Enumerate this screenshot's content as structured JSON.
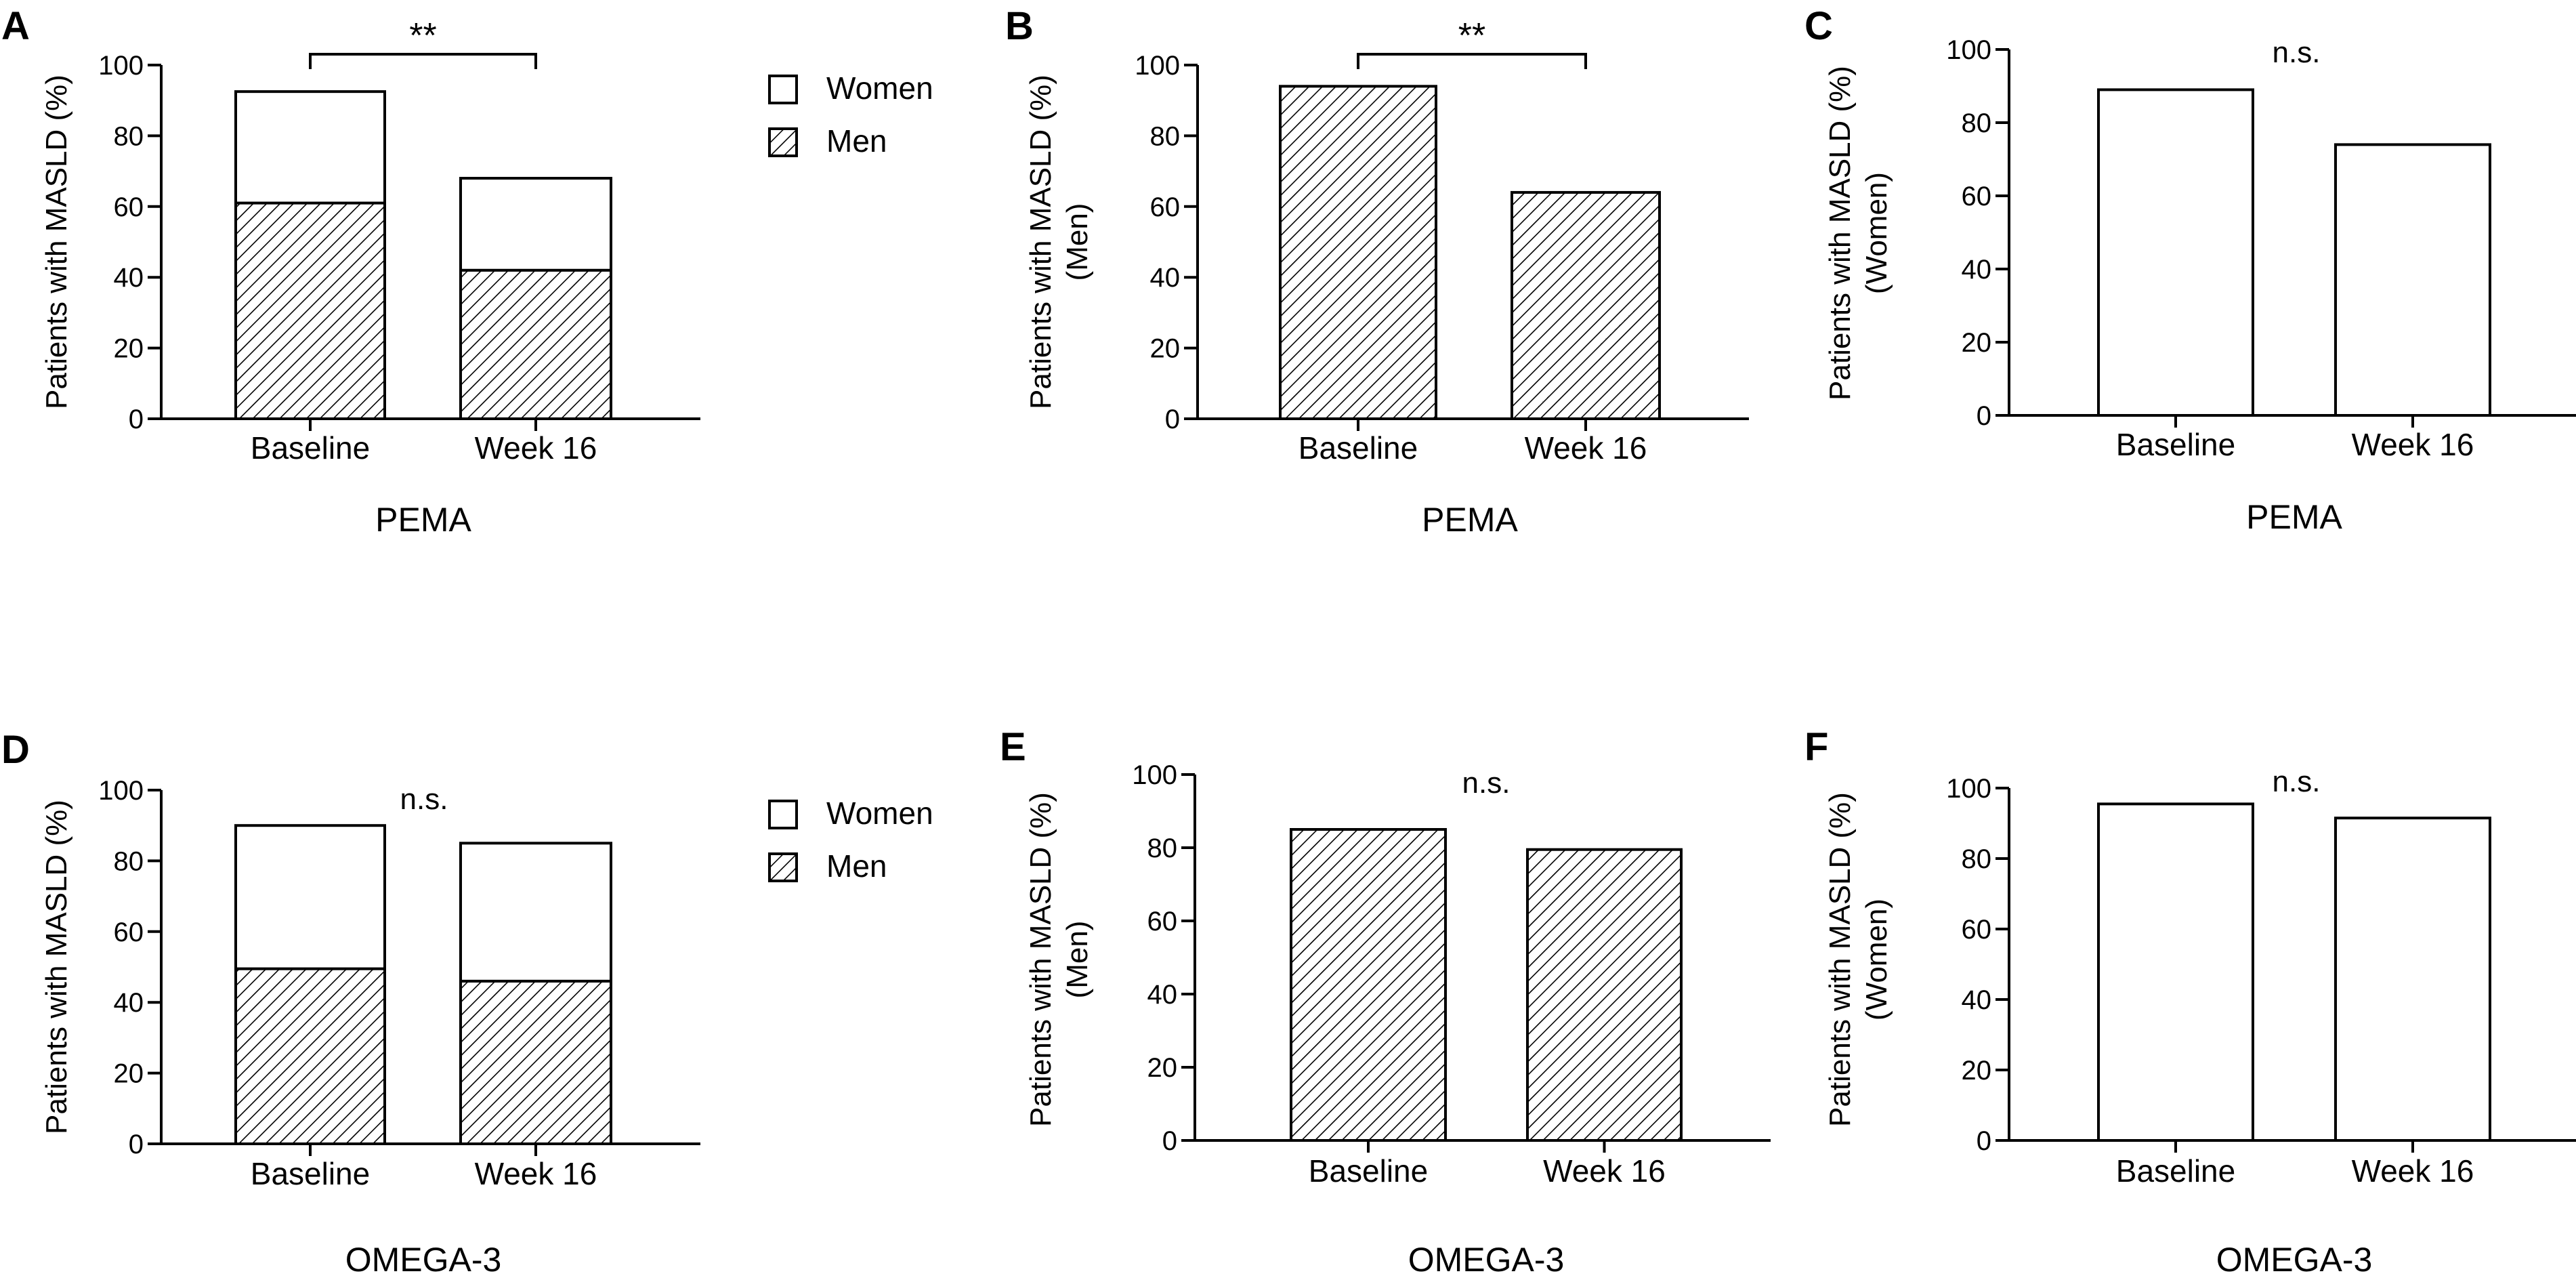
{
  "figure": {
    "legend_labels": [
      "Women",
      "Men"
    ],
    "panels": [
      {
        "letter": "A",
        "group_label": "PEMA",
        "ylabel_lines": [
          "Patients with MASLD (%)"
        ],
        "significance": "**",
        "significance_style": "bracket"
      },
      {
        "letter": "B",
        "group_label": "PEMA",
        "ylabel_lines": [
          "Patients with MASLD (%)",
          "(Men)"
        ],
        "significance": "**",
        "significance_style": "bracket"
      },
      {
        "letter": "C",
        "group_label": "PEMA",
        "ylabel_lines": [
          "Patients with MASLD (%)",
          "(Women)"
        ],
        "significance": "n.s.",
        "significance_style": "text"
      },
      {
        "letter": "D",
        "group_label": "OMEGA-3",
        "ylabel_lines": [
          "Patients with MASLD (%)"
        ],
        "significance": "n.s.",
        "significance_style": "text"
      },
      {
        "letter": "E",
        "group_label": "OMEGA-3",
        "ylabel_lines": [
          "Patients with MASLD (%)",
          "(Men)"
        ],
        "significance": "n.s.",
        "significance_style": "text"
      },
      {
        "letter": "F",
        "group_label": "OMEGA-3",
        "ylabel_lines": [
          "Patients with MASLD (%)",
          "(Women)"
        ],
        "significance": "n.s.",
        "significance_style": "text"
      }
    ]
  },
  "chart_data": [
    {
      "type": "bar",
      "stacked": true,
      "title": "",
      "xlabel": "PEMA",
      "ylabel": "Patients with MASLD (%)",
      "ylim": [
        0,
        100
      ],
      "yticks": [
        0,
        20,
        40,
        60,
        80,
        100
      ],
      "categories": [
        "Baseline",
        "Week 16"
      ],
      "series": [
        {
          "name": "Men",
          "pattern": "hatched",
          "values": [
            61,
            42
          ]
        },
        {
          "name": "Women",
          "pattern": "white",
          "values": [
            31.5,
            26
          ]
        }
      ],
      "legend": [
        "Women",
        "Men"
      ],
      "legend_position": "right",
      "annotation": "**"
    },
    {
      "type": "bar",
      "title": "",
      "xlabel": "PEMA",
      "ylabel": "Patients with MASLD (%) (Men)",
      "ylim": [
        0,
        100
      ],
      "yticks": [
        0,
        20,
        40,
        60,
        80,
        100
      ],
      "categories": [
        "Baseline",
        "Week 16"
      ],
      "series": [
        {
          "name": "Men",
          "pattern": "hatched",
          "values": [
            94,
            64
          ]
        }
      ],
      "annotation": "**"
    },
    {
      "type": "bar",
      "title": "",
      "xlabel": "PEMA",
      "ylabel": "Patients with MASLD (%) (Women)",
      "ylim": [
        0,
        100
      ],
      "yticks": [
        0,
        20,
        40,
        60,
        80,
        100
      ],
      "categories": [
        "Baseline",
        "Week 16"
      ],
      "series": [
        {
          "name": "Women",
          "pattern": "white",
          "values": [
            89,
            74
          ]
        }
      ],
      "annotation": "n.s."
    },
    {
      "type": "bar",
      "stacked": true,
      "title": "",
      "xlabel": "OMEGA-3",
      "ylabel": "Patients with MASLD (%)",
      "ylim": [
        0,
        100
      ],
      "yticks": [
        0,
        20,
        40,
        60,
        80,
        100
      ],
      "categories": [
        "Baseline",
        "Week 16"
      ],
      "series": [
        {
          "name": "Men",
          "pattern": "hatched",
          "values": [
            49.5,
            46
          ]
        },
        {
          "name": "Women",
          "pattern": "white",
          "values": [
            40.5,
            39
          ]
        }
      ],
      "legend": [
        "Women",
        "Men"
      ],
      "legend_position": "right",
      "annotation": "n.s."
    },
    {
      "type": "bar",
      "title": "",
      "xlabel": "OMEGA-3",
      "ylabel": "Patients with MASLD (%) (Men)",
      "ylim": [
        0,
        100
      ],
      "yticks": [
        0,
        20,
        40,
        60,
        80,
        100
      ],
      "categories": [
        "Baseline",
        "Week 16"
      ],
      "series": [
        {
          "name": "Men",
          "pattern": "hatched",
          "values": [
            85,
            79.5
          ]
        }
      ],
      "annotation": "n.s."
    },
    {
      "type": "bar",
      "title": "",
      "xlabel": "OMEGA-3",
      "ylabel": "Patients with MASLD (%) (Women)",
      "ylim": [
        0,
        100
      ],
      "yticks": [
        0,
        20,
        40,
        60,
        80,
        100
      ],
      "categories": [
        "Baseline",
        "Week 16"
      ],
      "series": [
        {
          "name": "Women",
          "pattern": "white",
          "values": [
            95.5,
            91.5
          ]
        }
      ],
      "annotation": "n.s."
    }
  ]
}
